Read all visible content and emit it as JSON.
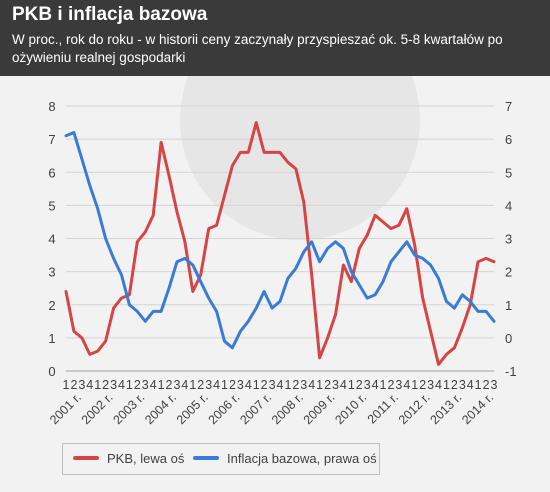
{
  "header": {
    "title": "PKB i inflacja bazowa",
    "subtitle": "W proc., rok do roku -  w historii ceny zaczynały przyspieszać ok. 5-8 kwartałów po ożywieniu realnej gospodarki"
  },
  "chart_data": {
    "type": "line",
    "title": "PKB i inflacja bazowa",
    "quarter_labels": [
      "1",
      "2",
      "3",
      "4"
    ],
    "year_labels": [
      "2001 r.",
      "2002 r.",
      "2003 r.",
      "2004 r.",
      "2005 r.",
      "2006 r.",
      "2007 r.",
      "2008 r.",
      "2009 r.",
      "2010 r.",
      "2011 r.",
      "2012 r.",
      "2013 r.",
      "2014 r."
    ],
    "x": [
      "2001Q1",
      "2001Q2",
      "2001Q3",
      "2001Q4",
      "2002Q1",
      "2002Q2",
      "2002Q3",
      "2002Q4",
      "2003Q1",
      "2003Q2",
      "2003Q3",
      "2003Q4",
      "2004Q1",
      "2004Q2",
      "2004Q3",
      "2004Q4",
      "2005Q1",
      "2005Q2",
      "2005Q3",
      "2005Q4",
      "2006Q1",
      "2006Q2",
      "2006Q3",
      "2006Q4",
      "2007Q1",
      "2007Q2",
      "2007Q3",
      "2007Q4",
      "2008Q1",
      "2008Q2",
      "2008Q3",
      "2008Q4",
      "2009Q1",
      "2009Q2",
      "2009Q3",
      "2009Q4",
      "2010Q1",
      "2010Q2",
      "2010Q3",
      "2010Q4",
      "2011Q1",
      "2011Q2",
      "2011Q3",
      "2011Q4",
      "2012Q1",
      "2012Q2",
      "2012Q3",
      "2012Q4",
      "2013Q1",
      "2013Q2",
      "2013Q3",
      "2013Q4",
      "2014Q1",
      "2014Q2",
      "2014Q3"
    ],
    "left_axis": {
      "ylim": [
        0,
        8
      ],
      "ticks": [
        "0",
        "1",
        "2",
        "3",
        "4",
        "5",
        "6",
        "7",
        "8"
      ]
    },
    "right_axis": {
      "ylim": [
        -1,
        7
      ],
      "ticks": [
        "-1",
        "0",
        "1",
        "2",
        "3",
        "4",
        "5",
        "6",
        "7"
      ]
    },
    "grid": true,
    "legend_position": "bottom-left",
    "series": [
      {
        "name": "PKB, lewa oś",
        "axis": "left",
        "color": "#d64545",
        "values": [
          2.4,
          1.2,
          1.0,
          0.5,
          0.6,
          0.9,
          1.9,
          2.2,
          2.3,
          3.9,
          4.2,
          4.7,
          6.9,
          5.9,
          4.8,
          3.9,
          2.4,
          2.9,
          4.3,
          4.4,
          5.3,
          6.2,
          6.6,
          6.6,
          7.5,
          6.6,
          6.6,
          6.6,
          6.3,
          6.1,
          5.1,
          2.9,
          0.4,
          1.0,
          1.7,
          3.2,
          2.7,
          3.7,
          4.1,
          4.7,
          4.5,
          4.3,
          4.4,
          4.9,
          3.8,
          2.2,
          1.2,
          0.2,
          0.5,
          0.7,
          1.3,
          2.0,
          3.3,
          3.4,
          3.3
        ]
      },
      {
        "name": "Inflacja bazowa, prawa oś",
        "axis": "right",
        "color": "#3a7bd5",
        "values": [
          6.1,
          6.2,
          5.4,
          4.6,
          3.9,
          3.0,
          2.4,
          1.9,
          1.0,
          0.8,
          0.5,
          0.8,
          0.8,
          1.5,
          2.3,
          2.4,
          2.2,
          1.7,
          1.2,
          0.8,
          -0.1,
          -0.3,
          0.2,
          0.5,
          0.9,
          1.4,
          0.9,
          1.1,
          1.8,
          2.1,
          2.6,
          2.9,
          2.3,
          2.7,
          2.9,
          2.7,
          2.0,
          1.6,
          1.2,
          1.3,
          1.7,
          2.3,
          2.6,
          2.9,
          2.5,
          2.4,
          2.2,
          1.8,
          1.1,
          0.9,
          1.3,
          1.1,
          0.8,
          0.8,
          0.5
        ]
      }
    ]
  }
}
